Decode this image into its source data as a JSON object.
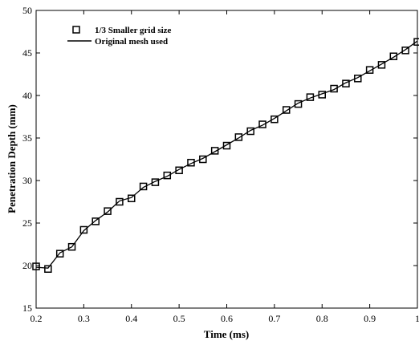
{
  "chart_data": {
    "type": "line",
    "xlabel": "Time (ms)",
    "ylabel": "Penetration Depth (mm)",
    "xlim": [
      0.2,
      1.0
    ],
    "ylim": [
      15,
      50
    ],
    "xticks": [
      "0.2",
      "0.3",
      "0.4",
      "0.5",
      "0.6",
      "0.7",
      "0.8",
      "0.9",
      "1"
    ],
    "yticks": [
      "15",
      "20",
      "25",
      "30",
      "35",
      "40",
      "45",
      "50"
    ],
    "legend_position": "top-left",
    "grid": false,
    "series": [
      {
        "name": "1/3 Smaller grid size",
        "style": "markers",
        "marker": "square-open",
        "x": [
          0.2,
          0.225,
          0.25,
          0.275,
          0.3,
          0.325,
          0.35,
          0.375,
          0.4,
          0.425,
          0.45,
          0.475,
          0.5,
          0.525,
          0.55,
          0.575,
          0.6,
          0.625,
          0.65,
          0.675,
          0.7,
          0.725,
          0.75,
          0.775,
          0.8,
          0.825,
          0.85,
          0.875,
          0.9,
          0.925,
          0.95,
          0.975,
          1.0
        ],
        "y": [
          19.9,
          19.6,
          21.4,
          22.2,
          24.2,
          25.2,
          26.4,
          27.5,
          27.9,
          29.3,
          29.8,
          30.6,
          31.2,
          32.1,
          32.5,
          33.5,
          34.1,
          35.1,
          35.8,
          36.6,
          37.2,
          38.3,
          39.0,
          39.8,
          40.1,
          40.8,
          41.4,
          42.0,
          43.0,
          43.6,
          44.6,
          45.3,
          46.3
        ]
      },
      {
        "name": "Original mesh used",
        "style": "line",
        "x": [
          0.2,
          0.225,
          0.25,
          0.275,
          0.3,
          0.325,
          0.35,
          0.375,
          0.4,
          0.425,
          0.45,
          0.475,
          0.5,
          0.525,
          0.55,
          0.575,
          0.6,
          0.625,
          0.65,
          0.675,
          0.7,
          0.725,
          0.75,
          0.775,
          0.8,
          0.825,
          0.85,
          0.875,
          0.9,
          0.925,
          0.95,
          0.975,
          1.0
        ],
        "y": [
          19.8,
          19.7,
          21.5,
          22.2,
          24.1,
          25.3,
          26.3,
          27.6,
          28.0,
          29.2,
          29.9,
          30.5,
          31.3,
          32.0,
          32.6,
          33.4,
          34.2,
          35.0,
          35.9,
          36.5,
          37.3,
          38.2,
          39.1,
          39.7,
          40.2,
          40.7,
          41.5,
          42.1,
          42.9,
          43.7,
          44.5,
          45.4,
          46.4
        ]
      }
    ]
  }
}
